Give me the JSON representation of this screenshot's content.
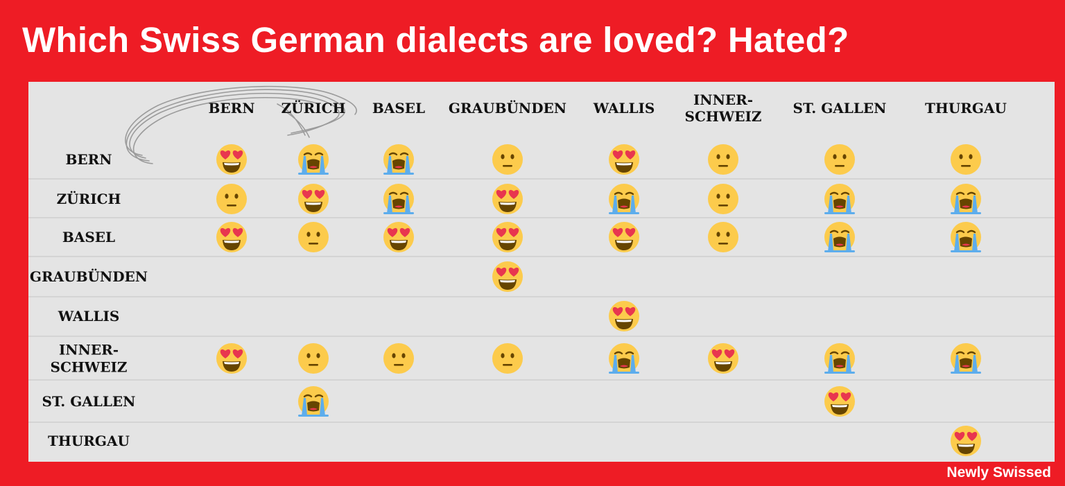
{
  "title": "Which Swiss German dialects are loved? Hated?",
  "credit": "Newly Swissed",
  "colors": {
    "background": "#ee1c25",
    "panel": "#e4e4e4"
  },
  "chart_data": {
    "type": "table",
    "columns": [
      "BERN",
      "ZÜRICH",
      "BASEL",
      "GRAUBÜNDEN",
      "WALLIS",
      "INNER-SCHWEIZ",
      "ST. GALLEN",
      "THURGAU"
    ],
    "rows": [
      "BERN",
      "ZÜRICH",
      "BASEL",
      "GRAUBÜNDEN",
      "WALLIS",
      "INNER-SCHWEIZ",
      "ST. GALLEN",
      "THURGAU"
    ],
    "legend": {
      "love": "heart-eyes-emoji",
      "neutral": "neutral-face-emoji",
      "hate": "loudly-crying-emoji"
    },
    "cells": [
      [
        "love",
        "hate",
        "hate",
        "neutral",
        "love",
        "neutral",
        "neutral",
        "neutral"
      ],
      [
        "neutral",
        "love",
        "hate",
        "love",
        "hate",
        "neutral",
        "hate",
        "hate"
      ],
      [
        "love",
        "neutral",
        "love",
        "love",
        "love",
        "neutral",
        "hate",
        "hate"
      ],
      [
        null,
        null,
        null,
        "love",
        null,
        null,
        null,
        null
      ],
      [
        null,
        null,
        null,
        null,
        "love",
        null,
        null,
        null
      ],
      [
        "love",
        "neutral",
        "neutral",
        "neutral",
        "hate",
        "love",
        "hate",
        "hate"
      ],
      [
        null,
        "hate",
        null,
        null,
        null,
        null,
        "love",
        null
      ],
      [
        null,
        null,
        null,
        null,
        null,
        null,
        null,
        "love"
      ]
    ]
  }
}
